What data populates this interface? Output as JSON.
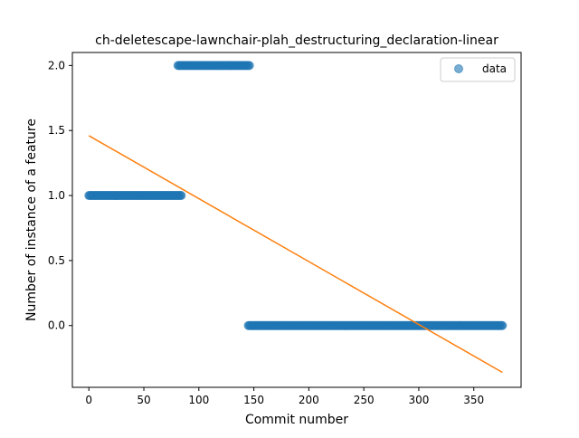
{
  "chart_data": {
    "type": "scatter",
    "title": "ch-deletescape-lawnchair-plah_destructuring_declaration-linear",
    "xlabel": "Commit number",
    "ylabel": "Number of instance of a feature",
    "xlim": [
      -15,
      393
    ],
    "ylim": [
      -0.475,
      2.1
    ],
    "x_ticks": [
      0,
      50,
      100,
      150,
      200,
      250,
      300,
      350
    ],
    "x_tick_labels": [
      "0",
      "50",
      "100",
      "150",
      "200",
      "250",
      "300",
      "350"
    ],
    "y_ticks": [
      0.0,
      0.5,
      1.0,
      1.5,
      2.0
    ],
    "y_tick_labels": [
      "0.0",
      "0.5",
      "1.0",
      "1.5",
      "2.0"
    ],
    "grid": false,
    "legend": {
      "placement": "top-right",
      "entries": [
        "data"
      ]
    },
    "series": [
      {
        "name": "data",
        "kind": "scatter",
        "color": "#1f77b4",
        "alpha": 0.6,
        "segments": [
          {
            "x_start": 0,
            "x_end": 84,
            "y": 1
          },
          {
            "x_start": 81,
            "x_end": 146,
            "y": 2
          },
          {
            "x_start": 145,
            "x_end": 376,
            "y": 0
          }
        ]
      },
      {
        "kind": "line",
        "color": "#ff7f0e",
        "x": [
          0,
          376
        ],
        "y": [
          1.46,
          -0.36
        ]
      }
    ]
  }
}
